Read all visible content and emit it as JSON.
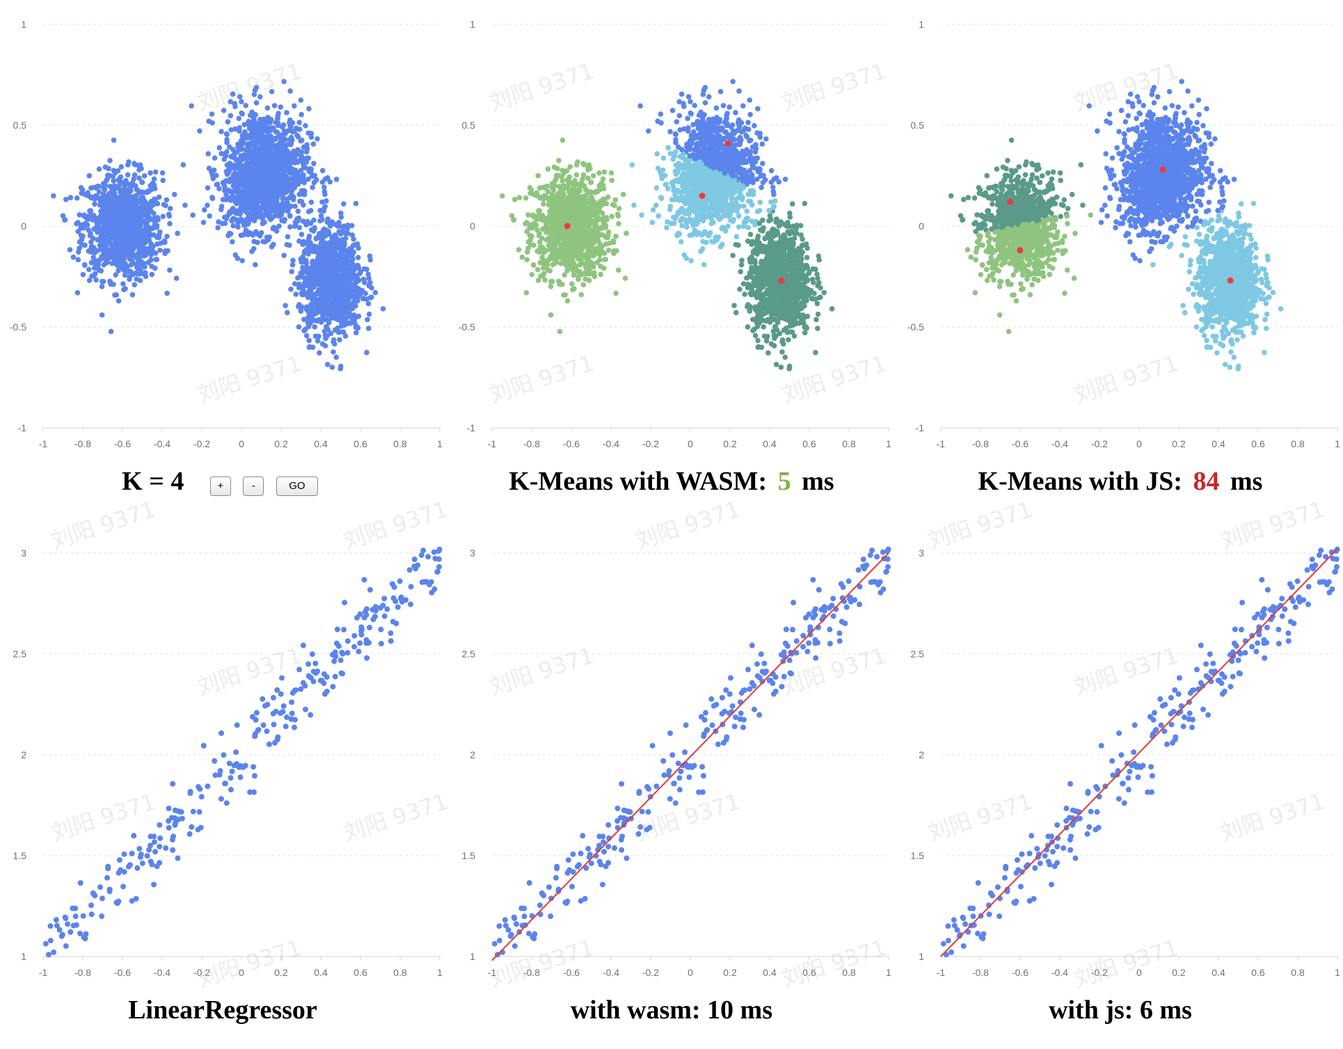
{
  "kmeans": {
    "k_label": "K = 4",
    "buttons": {
      "plus": "+",
      "minus": "-",
      "go": "GO"
    },
    "wasm_caption": {
      "prefix": "K-Means with WASM:",
      "time": "5",
      "unit": "ms",
      "color": "#7cb342"
    },
    "js_caption": {
      "prefix": "K-Means with JS:",
      "time": "84",
      "unit": "ms",
      "color": "#c62828"
    }
  },
  "regression": {
    "title": "LinearRegressor",
    "wasm_caption": "with wasm: 10 ms",
    "js_caption": "with js: 6 ms"
  },
  "watermark_text": "刘阳 9371",
  "colors": {
    "points": "#5b84ec",
    "centroid": "#ee3b3b",
    "fit_line": "#e53935",
    "cluster_light_green": "#8fc47f",
    "cluster_light_blue": "#7ec8e3",
    "cluster_dark_green": "#5a9a88",
    "cluster_blue": "#5b84ec"
  },
  "chart_data": [
    {
      "type": "scatter",
      "title": "",
      "xlim": [
        -1,
        1
      ],
      "ylim": [
        -1,
        1
      ],
      "x_ticks": [
        "-1",
        "-0.8",
        "-0.6",
        "-0.4",
        "-0.2",
        "0",
        "0.2",
        "0.4",
        "0.6",
        "0.8",
        "1"
      ],
      "y_ticks": [
        "1",
        "0.5",
        "0",
        "-0.5",
        "-1"
      ],
      "grid": "horizontal dashed",
      "clusters": [
        {
          "center": [
            -0.6,
            0.0
          ],
          "spread": [
            0.1,
            0.13
          ],
          "count": 1000
        },
        {
          "center": [
            0.12,
            0.28
          ],
          "spread": [
            0.11,
            0.15
          ],
          "count": 1000
        },
        {
          "center": [
            0.45,
            -0.27
          ],
          "spread": [
            0.08,
            0.14
          ],
          "count": 1000
        },
        {
          "center": [
            0.05,
            0.15
          ],
          "spread": [
            0.07,
            0.08
          ],
          "count": 300
        }
      ]
    },
    {
      "type": "scatter",
      "title": "K-Means with WASM",
      "xlim": [
        -1,
        1
      ],
      "ylim": [
        -1,
        1
      ],
      "centroids": [
        [
          -0.62,
          0.0
        ],
        [
          0.19,
          0.41
        ],
        [
          0.06,
          0.15
        ],
        [
          0.46,
          -0.27
        ]
      ]
    },
    {
      "type": "scatter",
      "title": "K-Means with JS",
      "xlim": [
        -1,
        1
      ],
      "ylim": [
        -1,
        1
      ],
      "centroids": [
        [
          -0.65,
          0.12
        ],
        [
          -0.6,
          -0.12
        ],
        [
          0.12,
          0.28
        ],
        [
          0.46,
          -0.27
        ]
      ]
    },
    {
      "type": "scatter",
      "title": "LinearRegressor",
      "xlim": [
        -1,
        1
      ],
      "ylim": [
        1,
        3
      ],
      "x_ticks": [
        "-1",
        "-0.8",
        "-0.6",
        "-0.4",
        "-0.2",
        "0",
        "0.2",
        "0.4",
        "0.6",
        "0.8",
        "1"
      ],
      "y_ticks": [
        "3",
        "2.5",
        "2",
        "1.5",
        "1"
      ],
      "relation": {
        "slope": 1.0,
        "intercept": 2.0,
        "noise": 0.09,
        "count": 300
      }
    },
    {
      "type": "scatter",
      "title": "with wasm: 10 ms",
      "xlim": [
        -1,
        1
      ],
      "ylim": [
        1,
        3
      ],
      "fit_line": {
        "x": [
          -1,
          1
        ],
        "y": [
          0.98,
          3.0
        ]
      }
    },
    {
      "type": "scatter",
      "title": "with js: 6 ms",
      "xlim": [
        -1,
        1
      ],
      "ylim": [
        1,
        3
      ],
      "fit_line": {
        "x": [
          -1,
          1
        ],
        "y": [
          1.0,
          3.02
        ]
      }
    }
  ]
}
